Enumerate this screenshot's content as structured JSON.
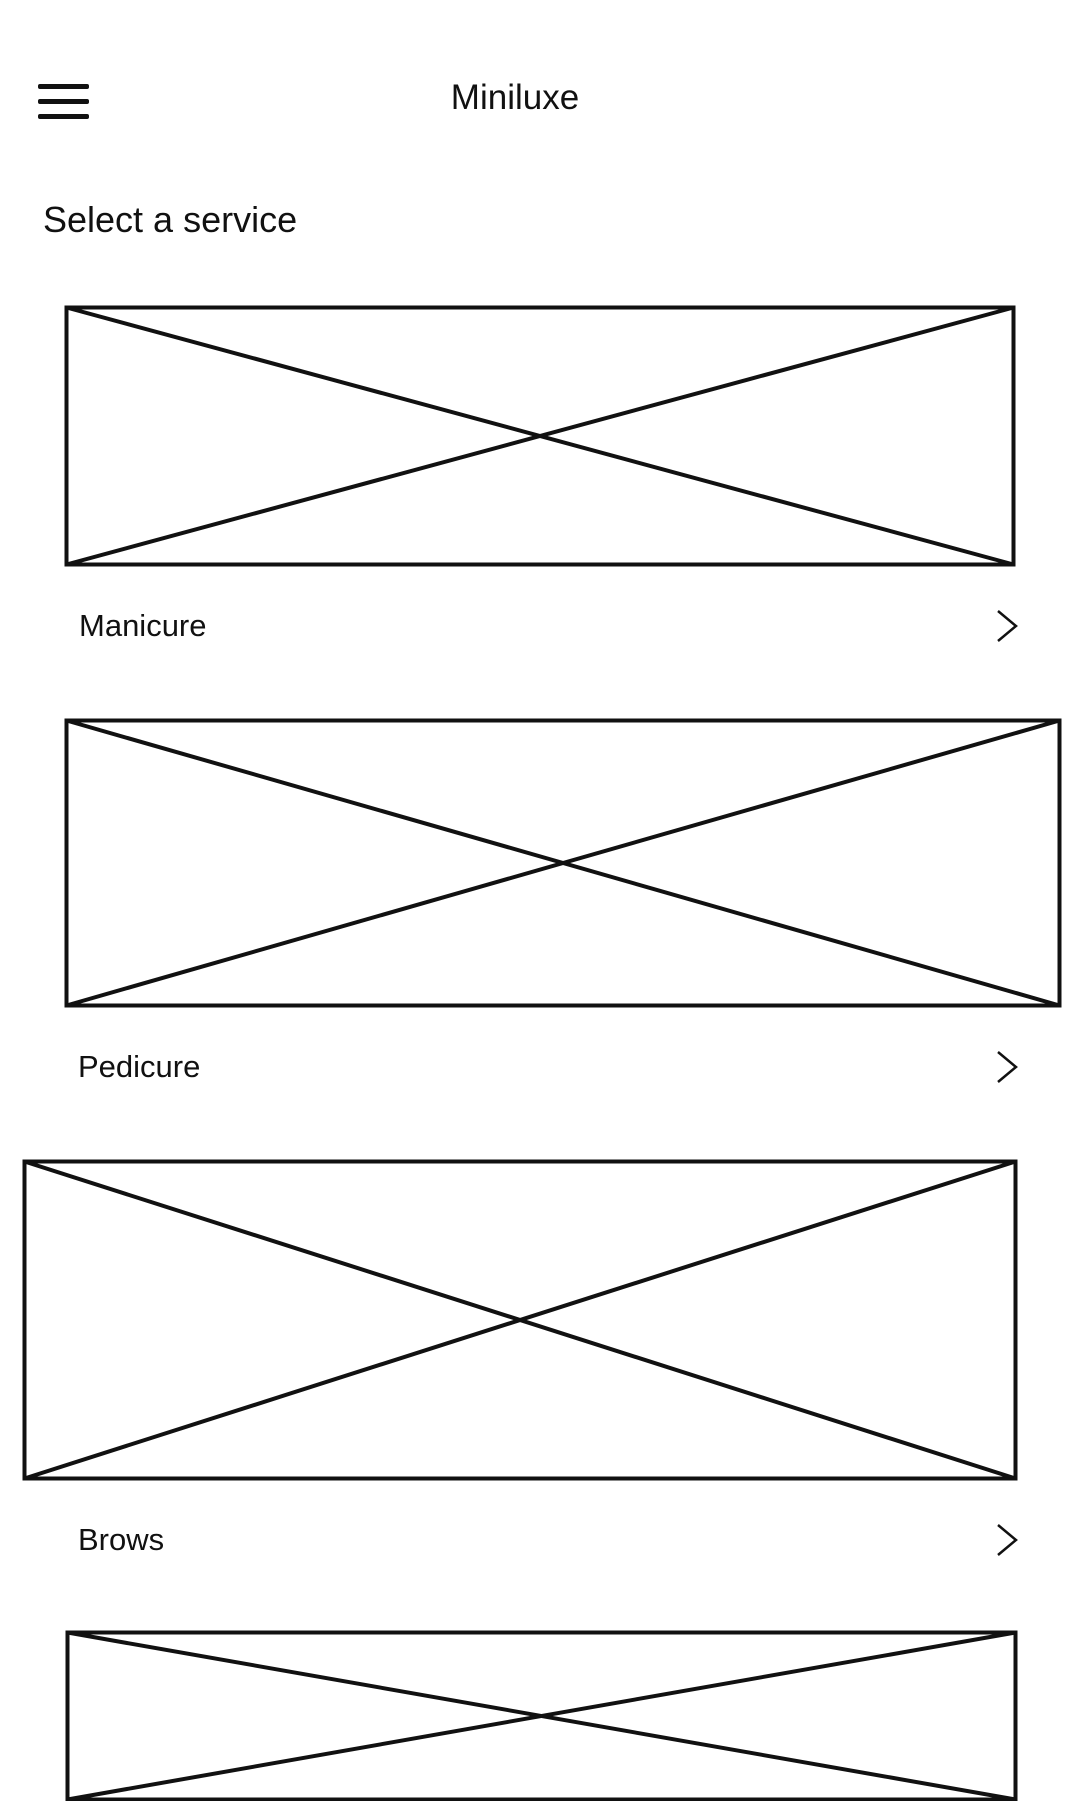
{
  "header": {
    "menu_icon": "hamburger-menu-icon",
    "title": "Miniluxe"
  },
  "page": {
    "heading": "Select a service"
  },
  "services": [
    {
      "label": "Manicure",
      "image": "image-placeholder",
      "chevron_icon": "chevron-right-icon"
    },
    {
      "label": "Pedicure",
      "image": "image-placeholder",
      "chevron_icon": "chevron-right-icon"
    },
    {
      "label": "Brows",
      "image": "image-placeholder",
      "chevron_icon": "chevron-right-icon"
    },
    {
      "label": "",
      "image": "image-placeholder"
    }
  ],
  "colors": {
    "background": "#ffffff",
    "ink": "#111111"
  }
}
